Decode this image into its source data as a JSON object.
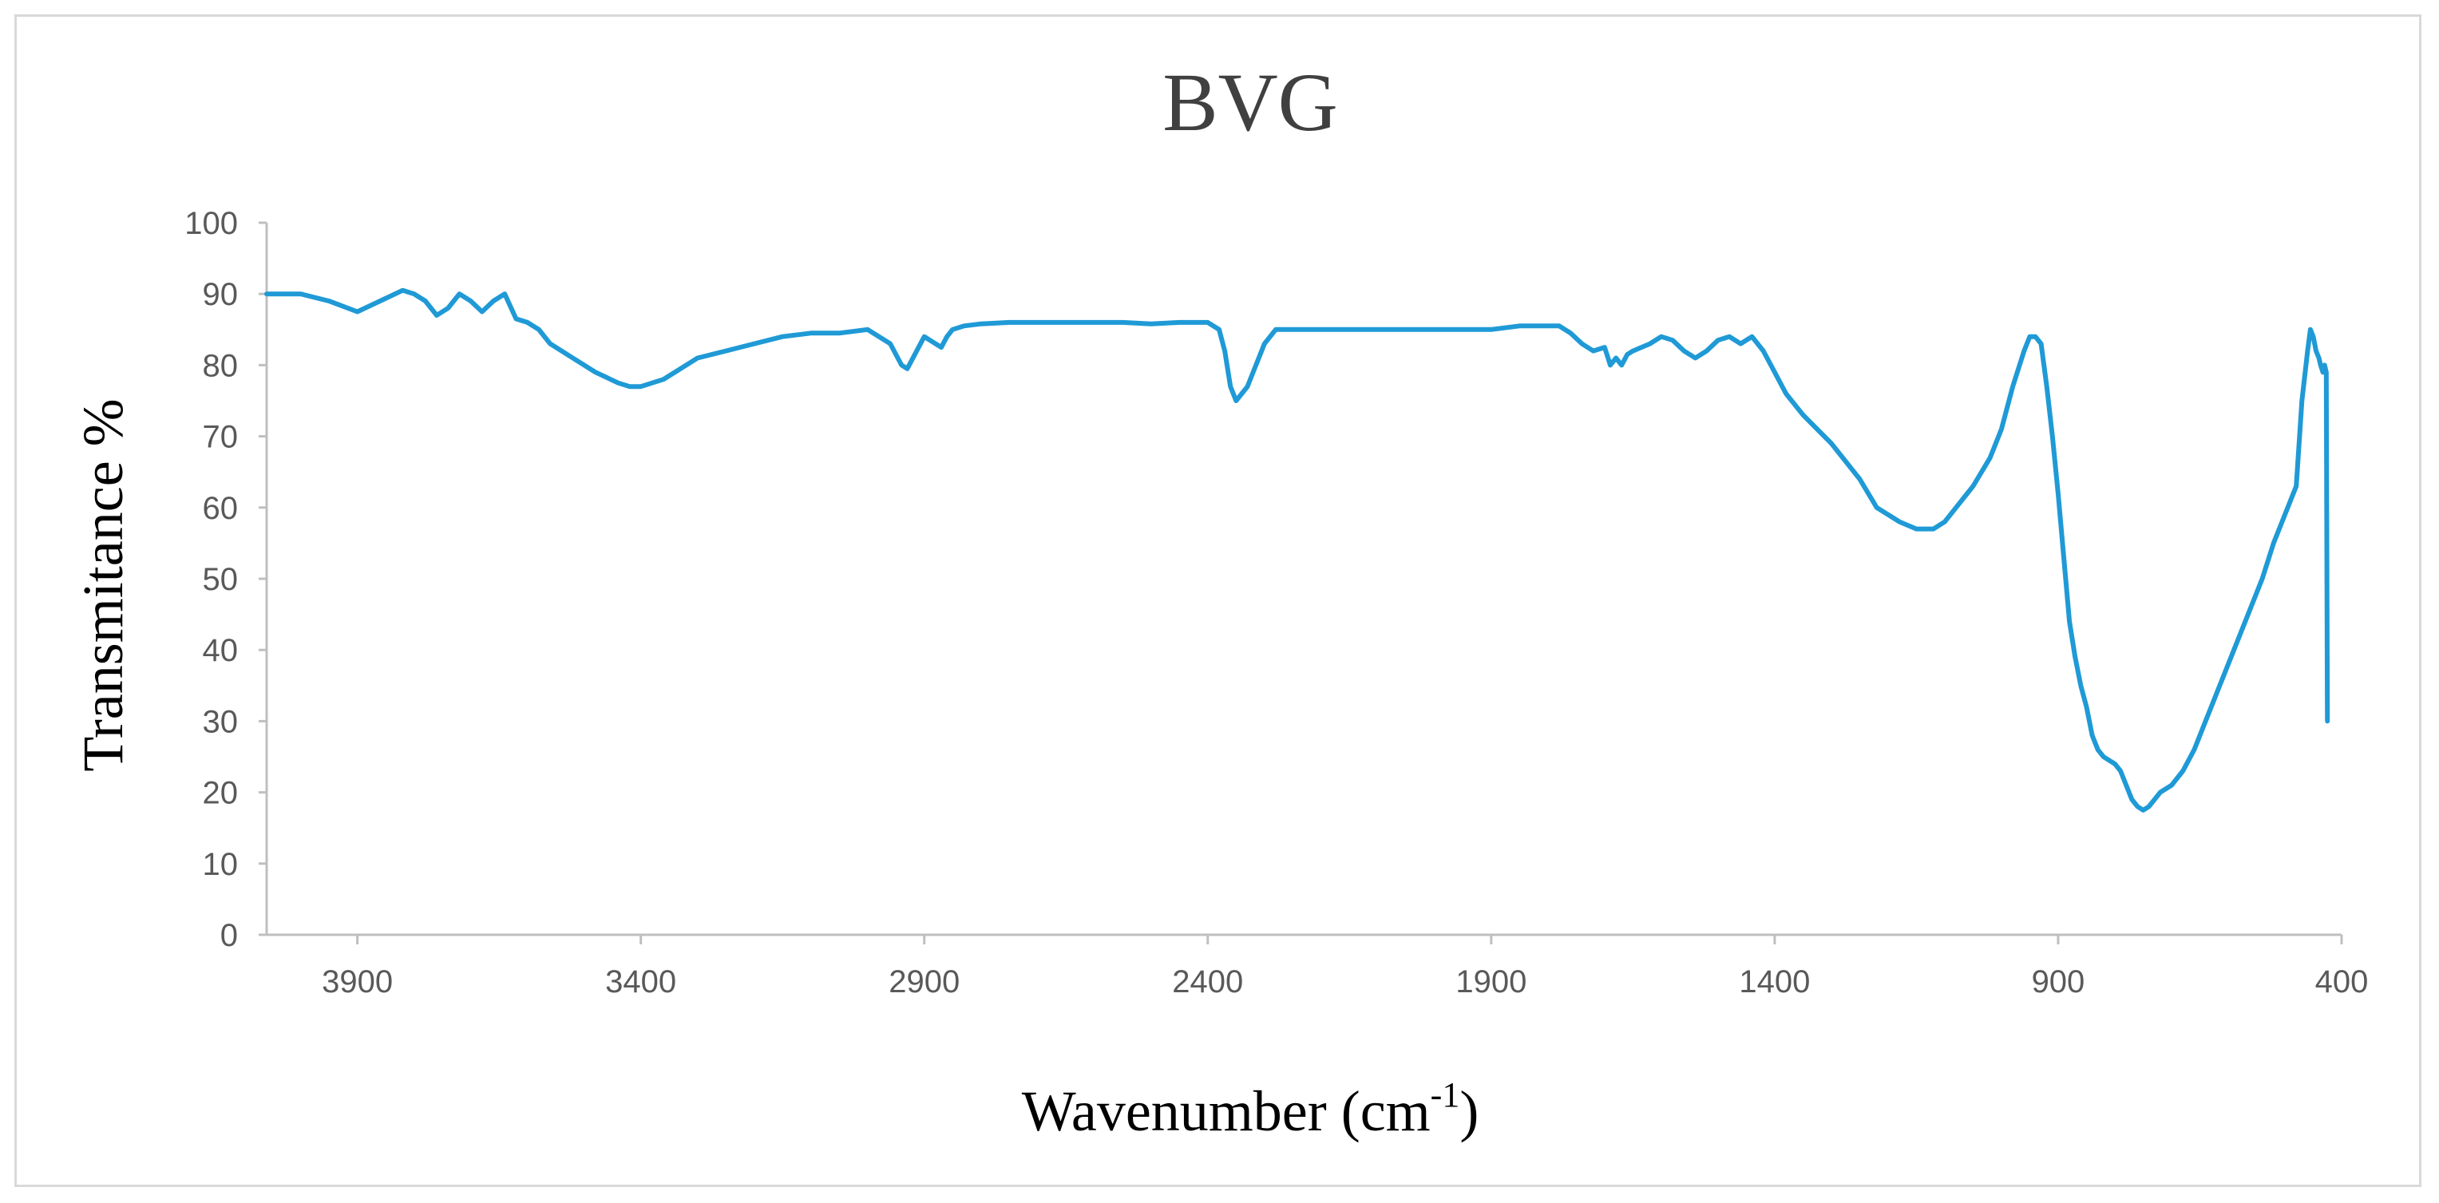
{
  "chart_data": {
    "type": "line",
    "title": "BVG",
    "xlabel": "Wavenumber (cm",
    "xlabel_sup": "-1",
    "xlabel_end": ")",
    "ylabel": "Transmitance %",
    "xlim": [
      4060,
      400
    ],
    "ylim": [
      0,
      100
    ],
    "x_reversed": true,
    "x_ticks": [
      3900,
      3400,
      2900,
      2400,
      1900,
      1400,
      900,
      400
    ],
    "y_ticks": [
      0,
      10,
      20,
      30,
      40,
      50,
      60,
      70,
      80,
      90,
      100
    ],
    "grid": false,
    "legend": "none",
    "series": [
      {
        "color": "#1f9ad6",
        "x": [
          4060,
          4000,
          3950,
          3900,
          3860,
          3820,
          3800,
          3780,
          3760,
          3740,
          3720,
          3700,
          3680,
          3660,
          3640,
          3620,
          3600,
          3580,
          3560,
          3520,
          3480,
          3440,
          3420,
          3400,
          3380,
          3360,
          3340,
          3300,
          3250,
          3200,
          3150,
          3100,
          3050,
          3000,
          2980,
          2960,
          2940,
          2930,
          2920,
          2900,
          2890,
          2870,
          2860,
          2850,
          2830,
          2800,
          2750,
          2700,
          2650,
          2600,
          2550,
          2500,
          2450,
          2400,
          2380,
          2370,
          2360,
          2350,
          2340,
          2330,
          2320,
          2300,
          2280,
          2250,
          2200,
          2150,
          2100,
          2050,
          2000,
          1950,
          1900,
          1850,
          1820,
          1800,
          1780,
          1760,
          1740,
          1720,
          1700,
          1690,
          1680,
          1670,
          1660,
          1650,
          1620,
          1600,
          1580,
          1560,
          1540,
          1520,
          1500,
          1480,
          1460,
          1440,
          1420,
          1400,
          1380,
          1350,
          1300,
          1250,
          1220,
          1200,
          1180,
          1150,
          1120,
          1100,
          1080,
          1050,
          1020,
          1000,
          980,
          960,
          950,
          940,
          930,
          920,
          910,
          900,
          890,
          880,
          870,
          860,
          850,
          840,
          830,
          820,
          810,
          800,
          790,
          780,
          770,
          760,
          750,
          740,
          730,
          720,
          700,
          680,
          660,
          640,
          620,
          600,
          580,
          560,
          540,
          520,
          500,
          480,
          470,
          460,
          455,
          450,
          445,
          440,
          437,
          433,
          430,
          427,
          425
        ],
        "y": [
          90,
          90,
          89,
          87.5,
          89,
          90.5,
          90,
          89,
          87,
          88,
          90,
          89,
          87.5,
          89,
          90,
          86.5,
          86,
          85,
          83,
          81,
          79,
          77.5,
          77,
          77,
          77.5,
          78,
          79,
          81,
          82,
          83,
          84,
          84.5,
          84.5,
          85,
          84,
          83,
          80,
          79.5,
          81,
          84,
          83.5,
          82.5,
          84,
          85,
          85.5,
          85.8,
          86,
          86,
          86,
          86,
          86,
          85.8,
          86,
          86,
          85,
          82,
          77,
          75,
          76,
          77,
          79,
          83,
          85,
          85,
          85,
          85,
          85,
          85,
          85,
          85,
          85,
          85.5,
          85.5,
          85.5,
          85.5,
          84.5,
          83,
          82,
          82.5,
          80,
          81,
          80,
          81.5,
          82,
          83,
          84,
          83.5,
          82,
          81,
          82,
          83.5,
          84,
          83,
          84,
          82,
          79,
          76,
          73,
          69,
          64,
          60,
          59,
          58,
          57,
          57,
          58,
          60,
          63,
          67,
          71,
          77,
          82,
          84,
          84,
          83,
          77,
          70,
          62,
          53,
          44,
          39,
          35,
          32,
          28,
          26,
          25,
          24.5,
          24,
          23,
          21,
          19,
          18,
          17.5,
          18,
          19,
          20,
          21,
          23,
          26,
          30,
          34,
          38,
          42,
          46,
          50,
          55,
          59,
          63,
          75,
          82,
          85,
          84,
          82,
          81,
          80,
          79,
          80,
          79,
          30
        ]
      }
    ]
  }
}
